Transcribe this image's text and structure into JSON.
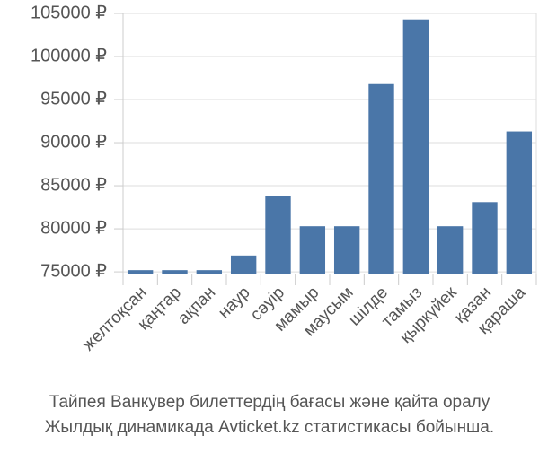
{
  "chart_data": {
    "type": "bar",
    "categories": [
      "желтоқсан",
      "қаңтар",
      "ақпан",
      "наур",
      "сәуір",
      "мамыр",
      "маусым",
      "шілде",
      "тамыз",
      "қыркүйек",
      "қазан",
      "қараша"
    ],
    "values": [
      75200,
      75200,
      75200,
      76900,
      83800,
      80300,
      80300,
      96800,
      104300,
      80300,
      83100,
      91300
    ],
    "color": "#4a76a8",
    "ylim": [
      74800,
      105000
    ],
    "yticks": [
      {
        "value": 75000,
        "label": "75000 ₽"
      },
      {
        "value": 80000,
        "label": "80000 ₽"
      },
      {
        "value": 85000,
        "label": "85000 ₽"
      },
      {
        "value": 90000,
        "label": "90000 ₽"
      },
      {
        "value": 95000,
        "label": "95000 ₽"
      },
      {
        "value": 100000,
        "label": "100000 ₽"
      },
      {
        "value": 105000,
        "label": "105000 ₽"
      }
    ],
    "grid": true,
    "caption": [
      "Тайпея Ванкувер билеттердің бағасы және қайта оралу",
      "Жылдық динамикада Avticket.kz статистикасы бойынша."
    ]
  }
}
